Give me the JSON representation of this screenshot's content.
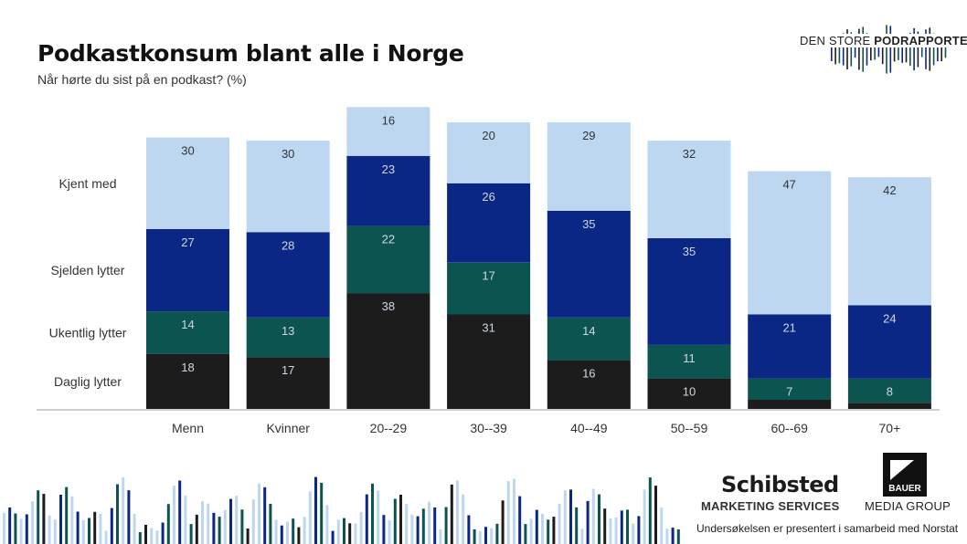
{
  "title": "Podkastkonsum blant alle i Norge",
  "subtitle": "Når hørte du sist på en podkast? (%)",
  "brand": {
    "text_regular": "DEN STORE ",
    "text_bold": "PODRAPPORTEN"
  },
  "colors": {
    "daglig": "#1c1c1c",
    "ukentlig": "#0c5450",
    "sjelden": "#0b2785",
    "kjent": "#bdd7f1",
    "label_dark_bg": "#cfd6e6",
    "label_light_bg": "#333333",
    "axis": "#999999"
  },
  "logos": {
    "schibsted": "Schibsted",
    "schibsted_sub": "MARKETING SERVICES",
    "bauer": "BAUER",
    "bauer_sub": "MEDIA GROUP"
  },
  "footnote": "Undersøkelsen er presentert i samarbeid med Norstat",
  "chart_data": {
    "type": "bar",
    "stacked": true,
    "categories": [
      "Menn",
      "Kvinner",
      "20--29",
      "30--39",
      "40--49",
      "50--59",
      "60--69",
      "70+"
    ],
    "series": [
      {
        "name": "Daglig lytter",
        "key": "daglig",
        "values": [
          18,
          17,
          38,
          31,
          16,
          10,
          3,
          2
        ],
        "labels": [
          "18",
          "17",
          "38",
          "31",
          "16",
          "10",
          "",
          ""
        ]
      },
      {
        "name": "Ukentlig lytter",
        "key": "ukentlig",
        "values": [
          14,
          13,
          22,
          17,
          14,
          11,
          7,
          8
        ],
        "labels": [
          "14",
          "13",
          "22",
          "17",
          "14",
          "11",
          "7",
          "8"
        ]
      },
      {
        "name": "Sjelden lytter",
        "key": "sjelden",
        "values": [
          27,
          28,
          23,
          26,
          35,
          35,
          21,
          24
        ],
        "labels": [
          "27",
          "28",
          "23",
          "26",
          "35",
          "35",
          "21",
          "24"
        ]
      },
      {
        "name": "Kjent med",
        "key": "kjent",
        "values": [
          30,
          30,
          16,
          20,
          29,
          32,
          47,
          42
        ],
        "labels": [
          "30",
          "30",
          "16",
          "20",
          "29",
          "32",
          "47",
          "42"
        ]
      }
    ],
    "legend_placement": "left",
    "grid": false
  }
}
